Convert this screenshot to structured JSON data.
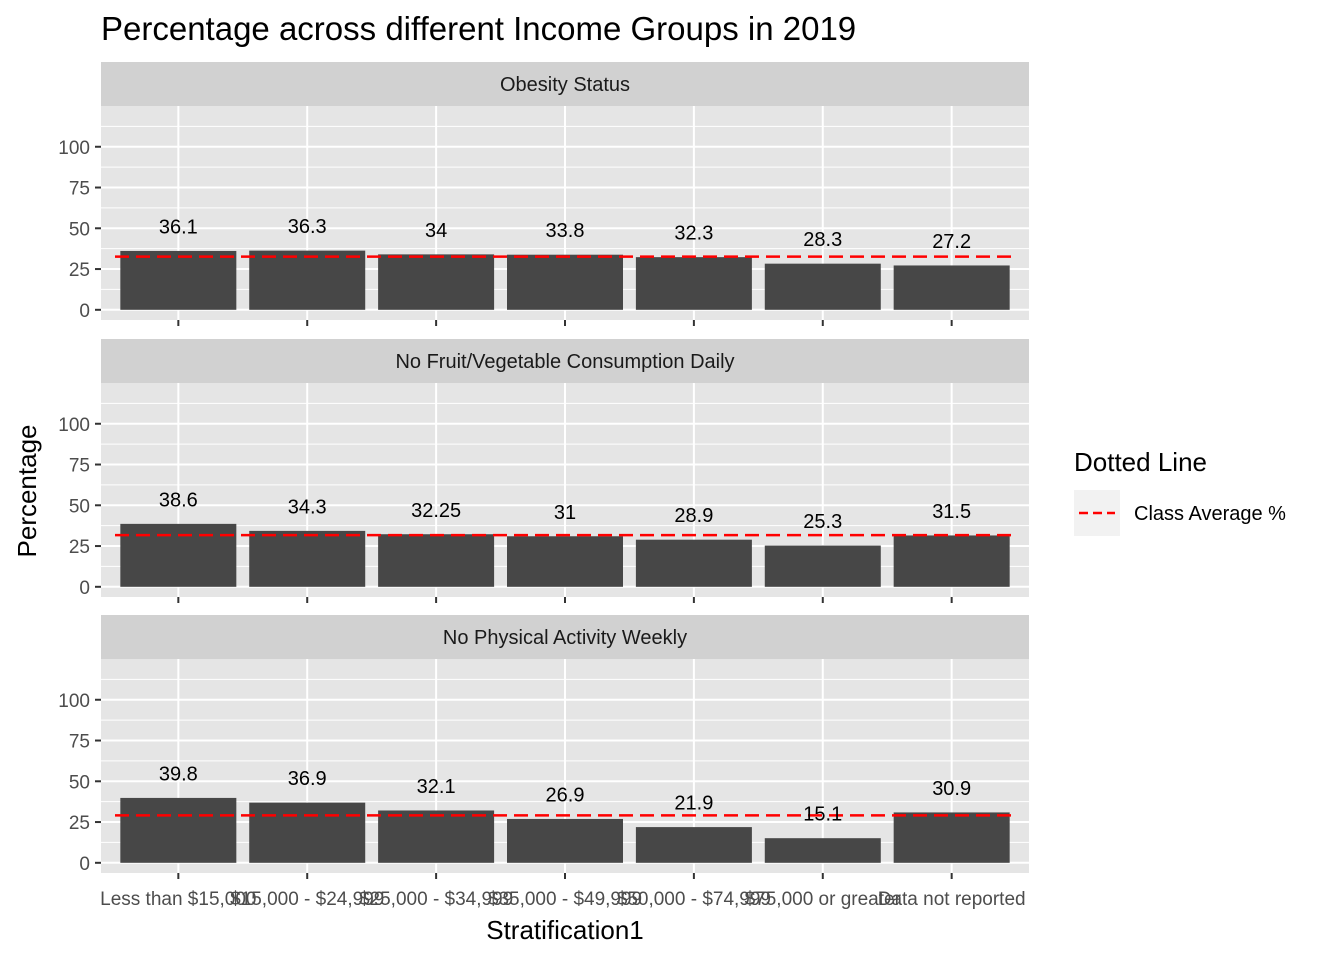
{
  "chart_data": {
    "type": "bar",
    "title": "Percentage across different Income Groups in 2019",
    "xlabel": "Stratification1",
    "ylabel": "Percentage",
    "ylim": [
      0,
      125
    ],
    "yticks": [
      0,
      25,
      50,
      75,
      100
    ],
    "grid": true,
    "categories": [
      "Less than $15,000",
      "$15,000 - $24,999",
      "$25,000 - $34,999",
      "$35,000 - $49,999",
      "$50,000 - $74,999",
      "$75,000 or greater",
      "Data not reported"
    ],
    "panels": [
      {
        "name": "Obesity Status",
        "values": [
          36.1,
          36.3,
          34,
          33.8,
          32.3,
          28.3,
          27.2
        ],
        "labels": [
          "36.1",
          "36.3",
          "34",
          "33.8",
          "32.3",
          "28.3",
          "27.2"
        ],
        "average": 32.6
      },
      {
        "name": "No Fruit/Vegetable Consumption Daily",
        "values": [
          38.6,
          34.3,
          32.25,
          31,
          28.9,
          25.3,
          31.5
        ],
        "labels": [
          "38.6",
          "34.3",
          "32.25",
          "31",
          "28.9",
          "25.3",
          "31.5"
        ],
        "average": 31.7
      },
      {
        "name": "No Physical Activity Weekly",
        "values": [
          39.8,
          36.9,
          32.1,
          26.9,
          21.9,
          15.1,
          30.9
        ],
        "labels": [
          "39.8",
          "36.9",
          "32.1",
          "26.9",
          "21.9",
          "15.1",
          "30.9"
        ],
        "average": 29.1
      }
    ],
    "legend": {
      "title": "Dotted Line",
      "entry": "Class Average %",
      "position": "right"
    },
    "colors": {
      "bar": "#474747",
      "average_line": "#ff0000",
      "panel_bg": "#e5e5e5",
      "strip_bg": "#d1d1d1",
      "grid": "#ffffff"
    }
  }
}
